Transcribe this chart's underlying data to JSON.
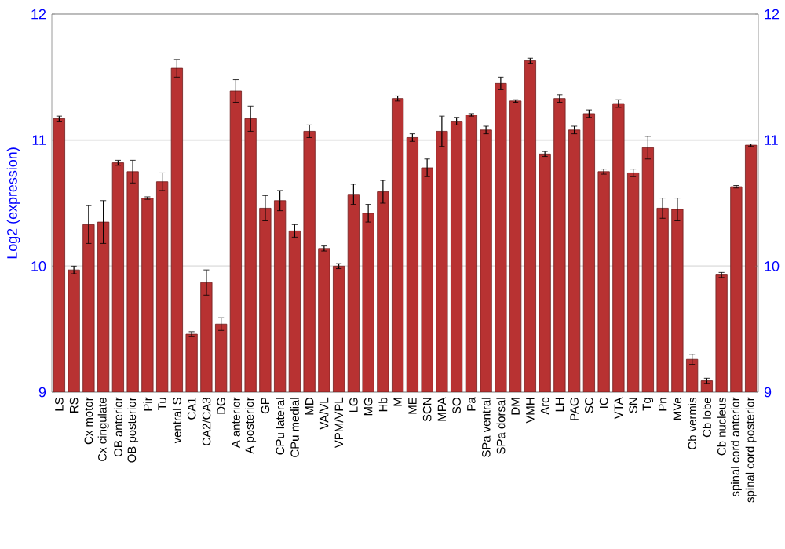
{
  "chart_data": {
    "type": "bar",
    "ylabel": "Log2 (expression)",
    "categories": [
      "LS",
      "RS",
      "Cx motor",
      "Cx cingulate",
      "OB anterior",
      "OB posterior",
      "Pir",
      "Tu",
      "ventral S",
      "CA1",
      "CA2/CA3",
      "DG",
      "A anterior",
      "A posterior",
      "GP",
      "CPu lateral",
      "CPu medial",
      "MD",
      "VA/VL",
      "VPM/VPL",
      "LG",
      "MG",
      "Hb",
      "M",
      "ME",
      "SCN",
      "MPA",
      "SO",
      "Pa",
      "SPa ventral",
      "SPa dorsal",
      "DM",
      "VMH",
      "Arc",
      "LH",
      "PAG",
      "SC",
      "IC",
      "VTA",
      "SN",
      "Tg",
      "Pn",
      "MVe",
      "Cb vermis",
      "Cb lobe",
      "Cb nucleus",
      "spinal cord anterior",
      "spinal cord posterior"
    ],
    "values": [
      11.17,
      9.97,
      10.33,
      10.35,
      10.82,
      10.75,
      10.54,
      10.67,
      11.57,
      9.46,
      9.87,
      9.54,
      11.39,
      11.17,
      10.46,
      10.52,
      10.28,
      11.07,
      10.14,
      10.0,
      10.57,
      10.42,
      10.59,
      11.33,
      11.02,
      10.78,
      11.07,
      11.15,
      11.2,
      11.08,
      11.45,
      11.31,
      11.63,
      10.89,
      11.33,
      11.08,
      11.21,
      10.75,
      11.29,
      10.74,
      10.94,
      10.46,
      10.45,
      9.26,
      9.09,
      9.93,
      10.63,
      10.96
    ],
    "errors": [
      0.02,
      0.03,
      0.15,
      0.17,
      0.02,
      0.09,
      0.01,
      0.07,
      0.07,
      0.02,
      0.1,
      0.05,
      0.09,
      0.1,
      0.1,
      0.08,
      0.05,
      0.05,
      0.02,
      0.02,
      0.08,
      0.07,
      0.09,
      0.02,
      0.03,
      0.07,
      0.12,
      0.03,
      0.01,
      0.03,
      0.05,
      0.01,
      0.02,
      0.02,
      0.03,
      0.03,
      0.03,
      0.02,
      0.03,
      0.03,
      0.09,
      0.08,
      0.09,
      0.04,
      0.02,
      0.02,
      0.01,
      0.01
    ],
    "color": "#b83232",
    "ylim": [
      9,
      12
    ],
    "yticks": [
      9,
      10,
      11,
      12
    ],
    "y2lim": [
      9,
      12
    ],
    "y2ticks": [
      9,
      10,
      11,
      12
    ],
    "grid": "y"
  }
}
